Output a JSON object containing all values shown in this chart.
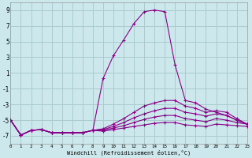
{
  "xlabel": "Windchill (Refroidissement éolien,°C)",
  "bg_color": "#cce8ec",
  "grid_color": "#aacccc",
  "line_color": "#880088",
  "xlim": [
    0,
    23
  ],
  "ylim": [
    -8,
    10
  ],
  "yticks": [
    -7,
    -5,
    -3,
    -1,
    1,
    3,
    5,
    7,
    9
  ],
  "xticks": [
    0,
    1,
    2,
    3,
    4,
    5,
    6,
    7,
    8,
    9,
    10,
    11,
    12,
    13,
    14,
    15,
    16,
    17,
    18,
    19,
    20,
    21,
    22,
    23
  ],
  "x_hours": [
    0,
    1,
    2,
    3,
    4,
    5,
    6,
    7,
    8,
    9,
    10,
    11,
    12,
    13,
    14,
    15,
    16,
    17,
    18,
    19,
    20,
    21,
    22,
    23
  ],
  "lines": [
    [
      -5.0,
      -6.9,
      -6.3,
      -6.2,
      -6.6,
      -6.6,
      -6.6,
      -6.6,
      -6.3,
      0.3,
      3.2,
      5.2,
      7.3,
      8.8,
      9.0,
      8.8,
      2.0,
      -2.5,
      -2.8,
      -3.6,
      -4.0,
      -4.4,
      -5.0,
      -5.5
    ],
    [
      -5.0,
      -6.9,
      -6.3,
      -6.2,
      -6.6,
      -6.6,
      -6.6,
      -6.6,
      -6.3,
      -6.1,
      -5.5,
      -4.8,
      -4.0,
      -3.2,
      -2.8,
      -2.5,
      -2.5,
      -3.2,
      -3.5,
      -4.0,
      -3.8,
      -4.0,
      -4.8,
      -5.5
    ],
    [
      -5.0,
      -6.9,
      -6.3,
      -6.2,
      -6.6,
      -6.6,
      -6.6,
      -6.6,
      -6.3,
      -6.2,
      -5.8,
      -5.3,
      -4.7,
      -4.2,
      -3.8,
      -3.5,
      -3.5,
      -4.0,
      -4.2,
      -4.5,
      -4.2,
      -4.4,
      -5.0,
      -5.5
    ],
    [
      -5.0,
      -6.9,
      -6.3,
      -6.2,
      -6.6,
      -6.6,
      -6.6,
      -6.6,
      -6.3,
      -6.3,
      -6.0,
      -5.7,
      -5.3,
      -4.9,
      -4.6,
      -4.4,
      -4.4,
      -4.8,
      -5.0,
      -5.2,
      -4.8,
      -5.0,
      -5.3,
      -5.5
    ],
    [
      -5.0,
      -6.9,
      -6.3,
      -6.2,
      -6.6,
      -6.6,
      -6.6,
      -6.6,
      -6.3,
      -6.4,
      -6.2,
      -6.0,
      -5.8,
      -5.6,
      -5.4,
      -5.3,
      -5.3,
      -5.6,
      -5.7,
      -5.8,
      -5.5,
      -5.6,
      -5.7,
      -5.8
    ]
  ]
}
